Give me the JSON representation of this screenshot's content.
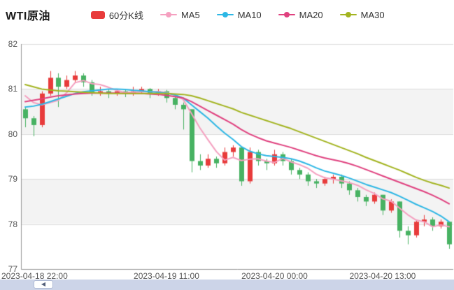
{
  "header": {
    "title": "WTI原油"
  },
  "legend": {
    "items": [
      {
        "label": "60分K线",
        "color": "#e83b3b",
        "icon": "candle-rect"
      },
      {
        "label": "MA5",
        "color": "#f5a0c0",
        "icon": "line-dot"
      },
      {
        "label": "MA10",
        "color": "#2db7e5",
        "icon": "line-dot"
      },
      {
        "label": "MA20",
        "color": "#e0417f",
        "icon": "line-dot"
      },
      {
        "label": "MA30",
        "color": "#a3b420",
        "icon": "line-dot"
      }
    ]
  },
  "scrollbar": {
    "arrow": "◀"
  },
  "chart_data": {
    "type": "candlestick",
    "title": "WTI原油",
    "interval_label": "60分K线",
    "grid": true,
    "legend_position": "top",
    "y_axis": {
      "min": 77,
      "max": 82,
      "tick_labels": [
        "77",
        "78",
        "79",
        "80",
        "81",
        "82"
      ]
    },
    "x_axis": {
      "labels": [
        {
          "text": "2023-04-18 22:00",
          "index": 0,
          "align": "left"
        },
        {
          "text": "2023-04-19 11:00",
          "index": 17,
          "align": "center"
        },
        {
          "text": "2023-04-20 00:00",
          "index": 30,
          "align": "center"
        },
        {
          "text": "2023-04-20 13:00",
          "index": 43,
          "align": "center"
        }
      ]
    },
    "colors": {
      "up": "#e83b3b",
      "down": "#47b262",
      "ma5": "#f5a0c0",
      "ma10": "#2db7e5",
      "ma20": "#e0417f",
      "ma30": "#a3b420"
    },
    "ohlc_order": "open,close,low,high",
    "candles": [
      [
        80.55,
        80.35,
        80.15,
        80.6
      ],
      [
        80.35,
        80.2,
        79.95,
        80.4
      ],
      [
        80.2,
        80.9,
        80.15,
        80.95
      ],
      [
        80.9,
        81.25,
        80.85,
        81.4
      ],
      [
        81.25,
        81.05,
        80.6,
        81.35
      ],
      [
        81.05,
        81.2,
        81.0,
        81.3
      ],
      [
        81.2,
        81.3,
        81.15,
        81.4
      ],
      [
        81.3,
        81.15,
        81.05,
        81.35
      ],
      [
        81.15,
        80.9,
        80.85,
        81.2
      ],
      [
        80.9,
        80.95,
        80.85,
        81.05
      ],
      [
        80.95,
        80.9,
        80.8,
        81.0
      ],
      [
        80.9,
        80.95,
        80.85,
        81.0
      ],
      [
        80.95,
        80.9,
        80.82,
        80.98
      ],
      [
        80.9,
        80.95,
        80.85,
        81.05
      ],
      [
        80.95,
        81.0,
        80.9,
        81.05
      ],
      [
        81.0,
        80.9,
        80.8,
        81.02
      ],
      [
        80.9,
        80.95,
        80.85,
        81.0
      ],
      [
        80.95,
        80.8,
        80.7,
        80.98
      ],
      [
        80.8,
        80.65,
        80.55,
        80.85
      ],
      [
        80.65,
        80.55,
        80.1,
        80.7
      ],
      [
        80.55,
        79.4,
        79.15,
        80.55
      ],
      [
        79.4,
        79.3,
        79.2,
        79.55
      ],
      [
        79.3,
        79.45,
        79.25,
        79.55
      ],
      [
        79.45,
        79.35,
        79.25,
        79.5
      ],
      [
        79.35,
        79.6,
        79.3,
        79.7
      ],
      [
        79.6,
        79.7,
        79.5,
        79.75
      ],
      [
        79.7,
        78.95,
        78.85,
        79.7
      ],
      [
        78.95,
        79.6,
        78.9,
        79.7
      ],
      [
        79.6,
        79.4,
        79.3,
        79.65
      ],
      [
        79.4,
        79.35,
        79.2,
        79.45
      ],
      [
        79.35,
        79.55,
        79.3,
        79.65
      ],
      [
        79.55,
        79.4,
        79.3,
        79.6
      ],
      [
        79.4,
        79.2,
        79.1,
        79.45
      ],
      [
        79.2,
        79.1,
        79.0,
        79.25
      ],
      [
        79.1,
        78.95,
        78.85,
        79.15
      ],
      [
        78.95,
        78.9,
        78.8,
        79.0
      ],
      [
        78.9,
        79.0,
        78.85,
        79.05
      ],
      [
        79.0,
        79.05,
        78.9,
        79.1
      ],
      [
        79.05,
        78.9,
        78.8,
        79.1
      ],
      [
        78.9,
        78.75,
        78.65,
        78.95
      ],
      [
        78.75,
        78.6,
        78.5,
        78.8
      ],
      [
        78.6,
        78.5,
        78.4,
        78.65
      ],
      [
        78.5,
        78.65,
        78.45,
        78.7
      ],
      [
        78.65,
        78.3,
        78.2,
        78.65
      ],
      [
        78.3,
        78.5,
        78.25,
        78.55
      ],
      [
        78.5,
        77.85,
        77.7,
        78.5
      ],
      [
        77.85,
        77.75,
        77.55,
        77.95
      ],
      [
        77.75,
        78.05,
        77.7,
        78.1
      ],
      [
        78.05,
        78.1,
        77.95,
        78.2
      ],
      [
        78.1,
        77.95,
        77.85,
        78.15
      ],
      [
        77.95,
        78.05,
        77.9,
        78.1
      ],
      [
        78.05,
        77.55,
        77.45,
        78.05
      ]
    ],
    "series": [
      {
        "name": "MA5",
        "color": "#f5a0c0",
        "values": [
          80.85,
          80.7,
          80.65,
          80.7,
          80.75,
          80.92,
          81.14,
          81.19,
          81.12,
          81.1,
          81.04,
          80.97,
          80.92,
          80.93,
          80.94,
          80.94,
          80.94,
          80.92,
          80.86,
          80.77,
          80.46,
          80.14,
          79.87,
          79.61,
          79.42,
          79.48,
          79.41,
          79.44,
          79.45,
          79.4,
          79.37,
          79.46,
          79.38,
          79.32,
          79.24,
          79.11,
          79.03,
          79.0,
          78.96,
          78.92,
          78.86,
          78.76,
          78.68,
          78.56,
          78.51,
          78.36,
          78.21,
          78.09,
          78.05,
          77.94,
          77.98,
          77.94
        ]
      },
      {
        "name": "MA10",
        "color": "#2db7e5",
        "values": [
          80.6,
          80.62,
          80.66,
          80.72,
          80.78,
          80.84,
          80.9,
          80.94,
          80.96,
          80.98,
          81.0,
          81.0,
          80.99,
          80.97,
          80.96,
          80.94,
          80.93,
          80.91,
          80.87,
          80.8,
          80.65,
          80.5,
          80.35,
          80.18,
          80.02,
          79.88,
          79.72,
          79.62,
          79.56,
          79.52,
          79.5,
          79.48,
          79.45,
          79.4,
          79.33,
          79.25,
          79.18,
          79.13,
          79.08,
          79.02,
          78.95,
          78.88,
          78.82,
          78.76,
          78.7,
          78.62,
          78.53,
          78.44,
          78.36,
          78.28,
          78.18,
          78.05
        ]
      },
      {
        "name": "MA20",
        "color": "#e0417f",
        "values": [
          80.72,
          80.75,
          80.78,
          80.82,
          80.85,
          80.87,
          80.89,
          80.9,
          80.91,
          80.91,
          80.91,
          80.91,
          80.9,
          80.9,
          80.9,
          80.89,
          80.88,
          80.86,
          80.83,
          80.8,
          80.72,
          80.62,
          80.52,
          80.42,
          80.32,
          80.22,
          80.1,
          80.0,
          79.92,
          79.85,
          79.8,
          79.75,
          79.7,
          79.64,
          79.58,
          79.52,
          79.47,
          79.43,
          79.39,
          79.34,
          79.28,
          79.21,
          79.14,
          79.07,
          79.0,
          78.93,
          78.86,
          78.79,
          78.72,
          78.64,
          78.55,
          78.45
        ]
      },
      {
        "name": "MA30",
        "color": "#a3b420",
        "values": [
          81.1,
          81.05,
          81.0,
          80.98,
          80.96,
          80.95,
          80.94,
          80.93,
          80.92,
          80.91,
          80.9,
          80.9,
          80.9,
          80.9,
          80.9,
          80.9,
          80.9,
          80.9,
          80.89,
          80.88,
          80.85,
          80.8,
          80.74,
          80.68,
          80.62,
          80.56,
          80.48,
          80.42,
          80.36,
          80.3,
          80.24,
          80.18,
          80.12,
          80.05,
          79.98,
          79.91,
          79.84,
          79.77,
          79.7,
          79.63,
          79.56,
          79.48,
          79.41,
          79.34,
          79.27,
          79.2,
          79.12,
          79.04,
          78.97,
          78.91,
          78.86,
          78.8
        ]
      }
    ]
  }
}
